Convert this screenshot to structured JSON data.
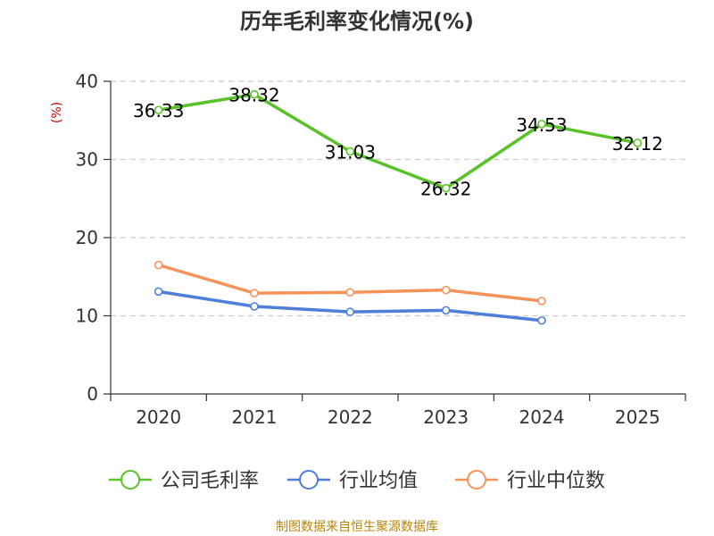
{
  "chart_data": {
    "type": "line",
    "title": "历年毛利率变化情况(%)",
    "ylabel": "(%)",
    "categories": [
      "2020",
      "2021",
      "2022",
      "2023",
      "2024",
      "2025"
    ],
    "ylim": [
      0,
      40
    ],
    "yticks": [
      0,
      10,
      20,
      30,
      40
    ],
    "grid": true,
    "legend_position": "bottom",
    "series": [
      {
        "name": "公司毛利率",
        "color": "#5ac229",
        "values": [
          36.33,
          38.32,
          31.03,
          26.32,
          34.53,
          32.12
        ],
        "labels": [
          "36.33",
          "38.32",
          "31.03",
          "26.32",
          "34.53",
          "32.12"
        ],
        "show_labels": true
      },
      {
        "name": "行业均值",
        "color": "#4d7fd8",
        "values": [
          13.1,
          11.2,
          10.5,
          10.7,
          9.4,
          null
        ],
        "show_labels": false
      },
      {
        "name": "行业中位数",
        "color": "#f5925a",
        "values": [
          16.5,
          12.9,
          13.0,
          13.3,
          11.9,
          null
        ],
        "show_labels": false
      }
    ]
  },
  "source": "制图数据来自恒生聚源数据库"
}
